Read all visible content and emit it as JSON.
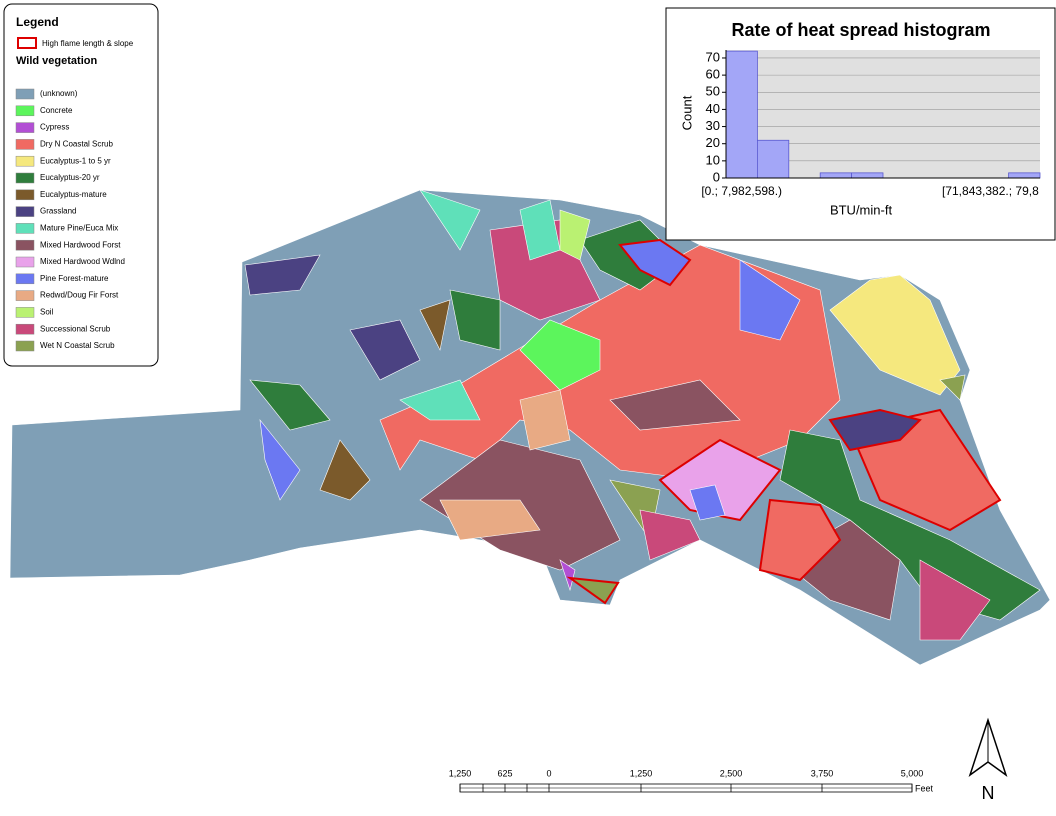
{
  "legend": {
    "title": "Legend",
    "highlight": "High flame length & slope",
    "group_title": "Wild vegetation",
    "highlight_color": "#dd0000",
    "items": [
      {
        "label": "(unknown)",
        "color": "#7f9fb6"
      },
      {
        "label": "Concrete",
        "color": "#5cf55c"
      },
      {
        "label": "Cypress",
        "color": "#b24fd4"
      },
      {
        "label": "Dry N Coastal Scrub",
        "color": "#f06a62"
      },
      {
        "label": "Eucalyptus-1 to 5 yr",
        "color": "#f5e87e"
      },
      {
        "label": "Eucalyptus-20 yr",
        "color": "#2f7d3c"
      },
      {
        "label": "Eucalyptus-mature",
        "color": "#7b5a2b"
      },
      {
        "label": "Grassland",
        "color": "#4b4282"
      },
      {
        "label": "Mature Pine/Euca Mix",
        "color": "#5fe0b9"
      },
      {
        "label": "Mixed Hardwood Forst",
        "color": "#8a5361"
      },
      {
        "label": "Mixed Hardwood Wdlnd",
        "color": "#e9a2ea"
      },
      {
        "label": "Pine Forest-mature",
        "color": "#6b78f2"
      },
      {
        "label": "Redwd/Doug Fir Forst",
        "color": "#e8aa84"
      },
      {
        "label": "Soil",
        "color": "#baf172"
      },
      {
        "label": "Successional Scrub",
        "color": "#c9497a"
      },
      {
        "label": "Wet N Coastal Scrub",
        "color": "#8ba151"
      }
    ]
  },
  "histogram": {
    "type": "bar",
    "title": "Rate of heat spread histogram",
    "x_label": "BTU/min-ft",
    "y_label": "Count",
    "values": [
      74,
      22,
      0,
      3,
      3,
      0,
      0,
      0,
      0,
      3
    ],
    "bin_labels": [
      "[0.; 7,982,598.)",
      null,
      null,
      null,
      null,
      null,
      null,
      null,
      null,
      "[71,843,382.; 79,8"
    ],
    "color": "#a3a6f7",
    "ylim": [
      0,
      75
    ],
    "yticks": [
      0,
      10,
      20,
      30,
      40,
      50,
      60,
      70
    ],
    "grid": true
  },
  "scale_bar": {
    "labels": [
      "1,250",
      "625",
      "0",
      "1,250",
      "2,500",
      "3,750",
      "5,000"
    ],
    "unit": "Feet"
  },
  "north_arrow": "N"
}
